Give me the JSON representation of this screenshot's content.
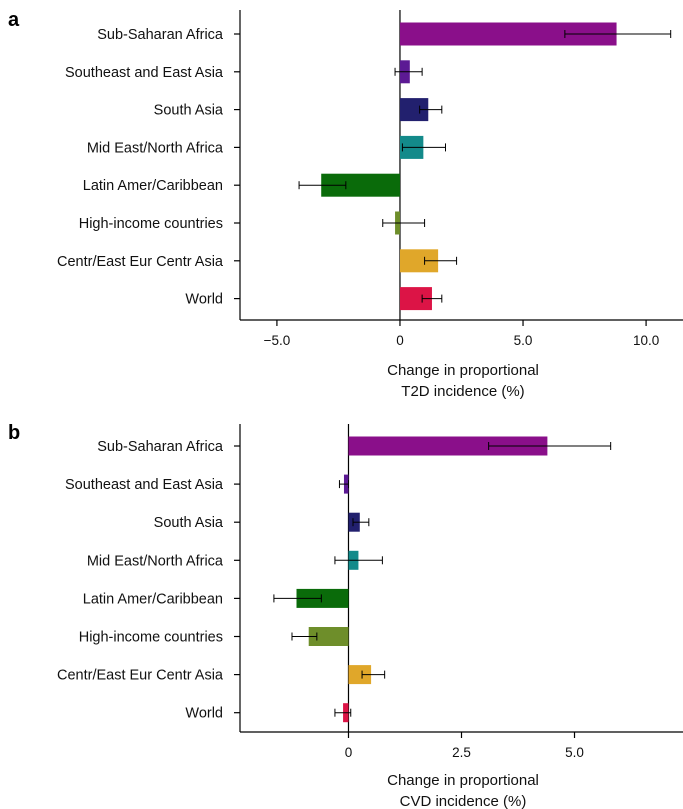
{
  "chart_data": [
    {
      "panel_label": "a",
      "type": "bar",
      "orientation": "horizontal",
      "categories": [
        "Sub-Saharan Africa",
        "Southeast and East Asia",
        "South Asia",
        "Mid East/North Africa",
        "Latin Amer/Caribbean",
        "High-income countries",
        "Centr/East Eur Centr Asia",
        "World"
      ],
      "values": [
        8.8,
        0.4,
        1.15,
        0.95,
        -3.2,
        -0.2,
        1.55,
        1.3
      ],
      "error_low": [
        6.7,
        -0.2,
        0.8,
        0.1,
        -4.1,
        -0.7,
        1.0,
        0.9
      ],
      "error_high": [
        11.0,
        0.9,
        1.7,
        1.85,
        -2.2,
        1.0,
        2.3,
        1.7
      ],
      "colors": [
        "#8a0f8a",
        "#5c1a94",
        "#22206e",
        "#138a8a",
        "#0a6b0a",
        "#6e8e2a",
        "#e0a72a",
        "#dc1446"
      ],
      "xlim": [
        -6.5,
        11.5
      ],
      "xticks": [
        -5.0,
        0,
        5.0,
        10.0
      ],
      "xtick_labels": [
        "−5.0",
        "0",
        "5.0",
        "10.0"
      ],
      "xlabel_line1": "Change in proportional",
      "xlabel_line2": "T2D incidence (%)",
      "grid": false
    },
    {
      "panel_label": "b",
      "type": "bar",
      "orientation": "horizontal",
      "categories": [
        "Sub-Saharan Africa",
        "Southeast and East Asia",
        "South Asia",
        "Mid East/North Africa",
        "Latin Amer/Caribbean",
        "High-income countries",
        "Centr/East Eur Centr Asia",
        "World"
      ],
      "values": [
        4.4,
        -0.1,
        0.25,
        0.22,
        -1.15,
        -0.88,
        0.5,
        -0.12
      ],
      "error_low": [
        3.1,
        -0.2,
        0.1,
        -0.3,
        -1.65,
        -1.25,
        0.3,
        -0.3
      ],
      "error_high": [
        5.8,
        0.0,
        0.45,
        0.75,
        -0.6,
        -0.7,
        0.8,
        0.05
      ],
      "colors": [
        "#8a0f8a",
        "#5c1a94",
        "#22206e",
        "#138a8a",
        "#0a6b0a",
        "#6e8e2a",
        "#e0a72a",
        "#dc1446"
      ],
      "xlim": [
        -2.4,
        7.4
      ],
      "xticks": [
        0,
        2.5,
        5.0
      ],
      "xtick_labels": [
        "0",
        "2.5",
        "5.0"
      ],
      "xlabel_line1": "Change in proportional",
      "xlabel_line2": "CVD incidence (%)",
      "grid": false
    }
  ]
}
